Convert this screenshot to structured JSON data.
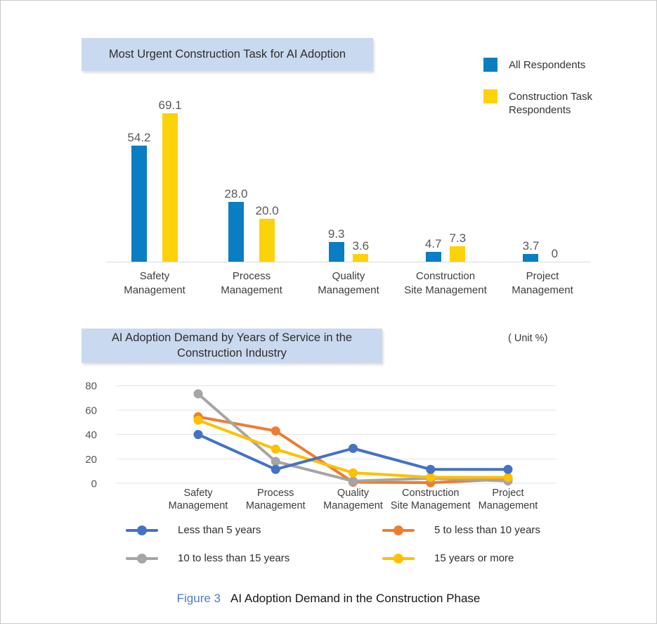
{
  "figure": {
    "caption_label": "Figure 3",
    "caption_title": "AI Adoption Demand in the Construction Phase"
  },
  "bar_section": {
    "title": "Most Urgent Construction Task for AI Adoption"
  },
  "line_section": {
    "title_line1": "AI Adoption Demand by Years of Service in the",
    "title_line2": "Construction Industry",
    "unit_label": "( Unit %)"
  },
  "colors": {
    "header_bg": "#c9d9ef",
    "gridline": "#e3e3e3",
    "axis_line": "#d9d9d9",
    "tick_text": "#555555",
    "category_text": "#3d3d3d",
    "value_label_text": "#595959",
    "caption_accent": "#4d7cc9"
  },
  "chart_data": [
    {
      "type": "bar",
      "title": "Most Urgent Construction Task for AI Adoption",
      "categories": [
        "Safety Management",
        "Process Management",
        "Quality Management",
        "Construction Site Management",
        "Project Management"
      ],
      "categories_lines": [
        [
          "Safety",
          "Management"
        ],
        [
          "Process",
          "Management"
        ],
        [
          "Quality",
          "Management"
        ],
        [
          "Construction",
          "Site Management"
        ],
        [
          "Project",
          "Management"
        ]
      ],
      "series": [
        {
          "name": "All Respondents",
          "color": "#0a7ec2",
          "values": [
            54.2,
            28.0,
            9.3,
            4.7,
            3.7
          ],
          "labels": [
            "54.2",
            "28.0",
            "9.3",
            "4.7",
            "3.7"
          ]
        },
        {
          "name": "Construction Task Respondents",
          "color": "#fcd20b",
          "values": [
            69.1,
            20.0,
            3.6,
            7.3,
            0
          ],
          "labels": [
            "69.1",
            "20.0",
            "3.6",
            "7.3",
            "0"
          ]
        }
      ],
      "ylabel": "",
      "xlabel": "",
      "ylim": [
        0,
        80
      ],
      "data_labels_shown": true,
      "legend_position": "top-right",
      "grid": false
    },
    {
      "type": "line",
      "title": "AI Adoption Demand by Years of Service in the Construction Industry",
      "unit": "( Unit %)",
      "categories": [
        "Safety Management",
        "Process Management",
        "Quality Management",
        "Construction Site Management",
        "Project Management"
      ],
      "categories_lines": [
        [
          "Safety",
          "Management"
        ],
        [
          "Process",
          "Management"
        ],
        [
          "Quality",
          "Management"
        ],
        [
          "Construction",
          "Site Management"
        ],
        [
          "Project",
          "Management"
        ]
      ],
      "series": [
        {
          "name": "Less than 5 years",
          "color": "#4472c4",
          "values": [
            40.0,
            11.4,
            28.6,
            11.4,
            11.4
          ]
        },
        {
          "name": "5 to less than 10 years",
          "color": "#ed7d31",
          "values": [
            54.5,
            42.9,
            0.9,
            0.5,
            3.4
          ]
        },
        {
          "name": "10 to less than 15 years",
          "color": "#a5a5a5",
          "values": [
            73.3,
            17.9,
            1.8,
            4.1,
            1.9
          ]
        },
        {
          "name": "15 years or more",
          "color": "#ffc000",
          "values": [
            51.7,
            28.0,
            8.6,
            5.0,
            4.8
          ]
        }
      ],
      "yticks": [
        0,
        20,
        40,
        60,
        80
      ],
      "ylim": [
        0,
        84
      ],
      "grid": true,
      "legend_position": "bottom",
      "marker": "circle"
    }
  ]
}
